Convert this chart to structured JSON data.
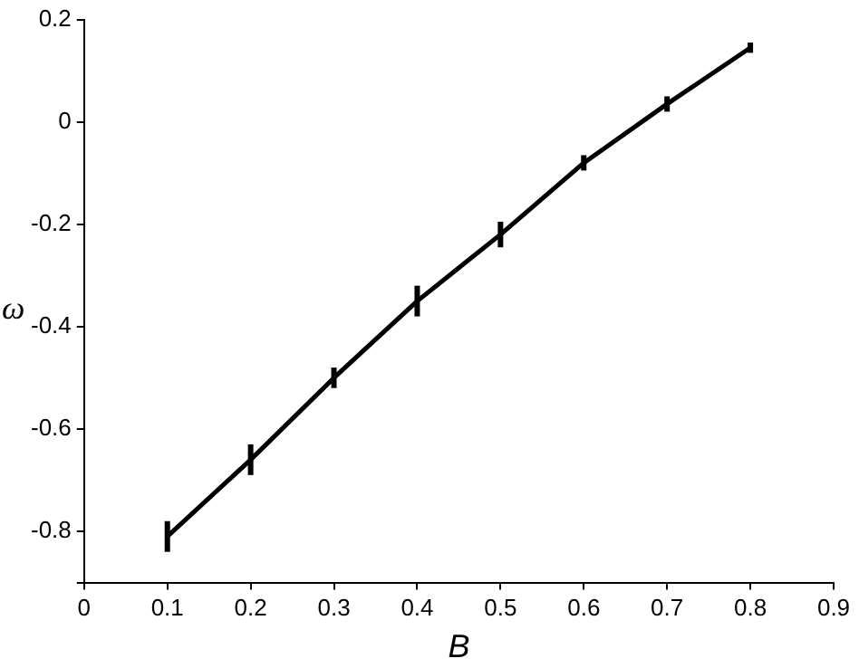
{
  "chart_data": {
    "type": "line",
    "xlabel": "B",
    "ylabel": "ω",
    "x": [
      0.1,
      0.2,
      0.3,
      0.4,
      0.5,
      0.6,
      0.7,
      0.8
    ],
    "series": [
      {
        "color": "#000000",
        "values": [
          -0.81,
          -0.66,
          -0.5,
          -0.35,
          -0.22,
          -0.08,
          0.035,
          0.145
        ],
        "errors": [
          0.03,
          0.03,
          0.02,
          0.03,
          0.025,
          0.015,
          0.015,
          0.01
        ]
      }
    ],
    "xlim": [
      0,
      0.9
    ],
    "xticks": [
      0,
      0.1,
      0.2,
      0.3,
      0.4,
      0.5,
      0.6,
      0.7,
      0.8,
      0.9
    ],
    "ylim": [
      -0.9,
      0.2
    ],
    "yticks": [
      {
        "value": -0.9,
        "label": null
      },
      -0.8,
      -0.6,
      -0.4,
      -0.2,
      0,
      0.2
    ],
    "grid": false,
    "legend": false,
    "marker": "none",
    "line_style": "solid"
  }
}
